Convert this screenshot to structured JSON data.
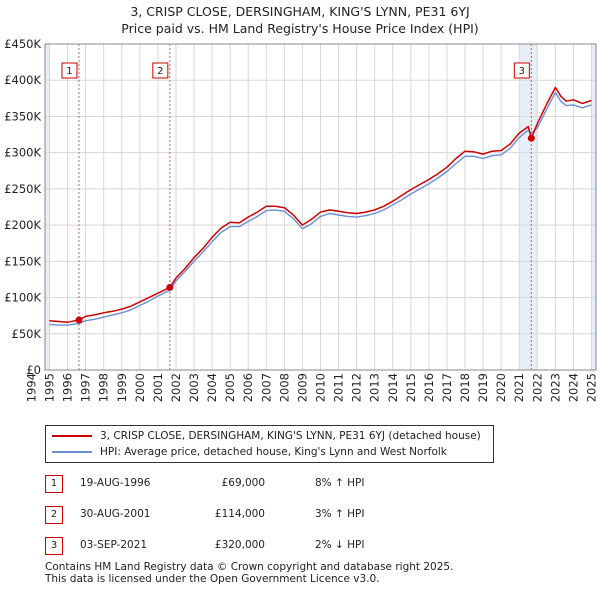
{
  "title_line1": "3, CRISP CLOSE, DERSINGHAM, KING'S LYNN, PE31 6YJ",
  "title_line2": "Price paid vs. HM Land Registry's House Price Index (HPI)",
  "legend": {
    "series1": "3, CRISP CLOSE, DERSINGHAM, KING'S LYNN, PE31 6YJ (detached house)",
    "series2": "HPI: Average price, detached house, King's Lynn and West Norfolk"
  },
  "colors": {
    "property": "#cc0000",
    "hpi": "#6b8fd4",
    "shade": "#e8eef8",
    "marker": "#cc0000"
  },
  "transactions": [
    {
      "num": "1",
      "date": "19-AUG-1996",
      "price": "£69,000",
      "hpi": "8% ↑ HPI"
    },
    {
      "num": "2",
      "date": "30-AUG-2001",
      "price": "£114,000",
      "hpi": "3% ↑ HPI"
    },
    {
      "num": "3",
      "date": "03-SEP-2021",
      "price": "£320,000",
      "hpi": "2% ↓ HPI"
    }
  ],
  "footer_line1": "Contains HM Land Registry data © Crown copyright and database right 2025.",
  "footer_line2": "This data is licensed under the Open Government Licence v3.0.",
  "chart_data": {
    "type": "line",
    "title": "3, CRISP CLOSE, DERSINGHAM, KING'S LYNN, PE31 6YJ — Price paid vs. HM Land Registry's House Price Index (HPI)",
    "xlabel": "",
    "ylabel": "",
    "xlim": [
      1994.75,
      2025.25
    ],
    "ylim": [
      0,
      450000
    ],
    "y_ticks": [
      0,
      50000,
      100000,
      150000,
      200000,
      250000,
      300000,
      350000,
      400000,
      450000
    ],
    "y_tick_labels": [
      "£0",
      "£50K",
      "£100K",
      "£150K",
      "£200K",
      "£250K",
      "£300K",
      "£350K",
      "£400K",
      "£450K"
    ],
    "x_ticks": [
      1994,
      1995,
      1996,
      1997,
      1998,
      1999,
      2000,
      2001,
      2002,
      2003,
      2004,
      2005,
      2006,
      2007,
      2008,
      2009,
      2010,
      2011,
      2012,
      2013,
      2014,
      2015,
      2016,
      2017,
      2018,
      2019,
      2020,
      2021,
      2022,
      2023,
      2024,
      2025
    ],
    "x_tick_labels": [
      "1994",
      "1995",
      "1996",
      "1997",
      "1998",
      "1999",
      "2000",
      "2001",
      "2002",
      "2003",
      "2004",
      "2005",
      "2006",
      "2007",
      "2008",
      "2009",
      "2010",
      "2011",
      "2012",
      "2013",
      "2014",
      "2015",
      "2016",
      "2017",
      "2018",
      "2019",
      "2020",
      "2021",
      "2022",
      "2023",
      "2024",
      "2025"
    ],
    "grid": true,
    "shaded_periods": [
      [
        1994.75,
        1995.0
      ],
      [
        2021.0,
        2022.0
      ],
      [
        2025.0,
        2025.25
      ]
    ],
    "series": [
      {
        "name": "3, CRISP CLOSE, DERSINGHAM, KING'S LYNN, PE31 6YJ (detached house)",
        "x": [
          1995.0,
          1995.5,
          1996.0,
          1996.63,
          1997.0,
          1997.5,
          1998.0,
          1998.5,
          1999.0,
          1999.5,
          2000.0,
          2000.5,
          2001.0,
          2001.66,
          2002.0,
          2002.5,
          2003.0,
          2003.5,
          2004.0,
          2004.5,
          2005.0,
          2005.5,
          2006.0,
          2006.5,
          2007.0,
          2007.5,
          2008.0,
          2008.5,
          2009.0,
          2009.5,
          2010.0,
          2010.5,
          2011.0,
          2011.5,
          2012.0,
          2012.5,
          2013.0,
          2013.5,
          2014.0,
          2014.5,
          2015.0,
          2015.5,
          2016.0,
          2016.5,
          2017.0,
          2017.5,
          2018.0,
          2018.5,
          2019.0,
          2019.5,
          2020.0,
          2020.5,
          2021.0,
          2021.5,
          2021.67,
          2022.0,
          2022.5,
          2023.0,
          2023.3,
          2023.6,
          2024.0,
          2024.5,
          2025.0
        ],
        "values": [
          68000,
          67000,
          66000,
          69000,
          74000,
          76000,
          79000,
          81000,
          84000,
          88000,
          94000,
          100000,
          106000,
          114000,
          127000,
          140000,
          155000,
          168000,
          183000,
          196000,
          204000,
          203000,
          211000,
          218000,
          226000,
          226000,
          224000,
          214000,
          200000,
          208000,
          218000,
          221000,
          219000,
          217000,
          216000,
          218000,
          221000,
          226000,
          233000,
          241000,
          249000,
          256000,
          263000,
          271000,
          280000,
          292000,
          302000,
          301000,
          298000,
          302000,
          303000,
          312000,
          327000,
          336000,
          320000,
          340000,
          366000,
          390000,
          378000,
          371000,
          373000,
          368000,
          372000
        ]
      },
      {
        "name": "HPI: Average price, detached house, King's Lynn and West Norfolk",
        "x": [
          1995.0,
          1995.5,
          1996.0,
          1996.63,
          1997.0,
          1997.5,
          1998.0,
          1998.5,
          1999.0,
          1999.5,
          2000.0,
          2000.5,
          2001.0,
          2001.66,
          2002.0,
          2002.5,
          2003.0,
          2003.5,
          2004.0,
          2004.5,
          2005.0,
          2005.5,
          2006.0,
          2006.5,
          2007.0,
          2007.5,
          2008.0,
          2008.5,
          2009.0,
          2009.5,
          2010.0,
          2010.5,
          2011.0,
          2011.5,
          2012.0,
          2012.5,
          2013.0,
          2013.5,
          2014.0,
          2014.5,
          2015.0,
          2015.5,
          2016.0,
          2016.5,
          2017.0,
          2017.5,
          2018.0,
          2018.5,
          2019.0,
          2019.5,
          2020.0,
          2020.5,
          2021.0,
          2021.5,
          2021.67,
          2022.0,
          2022.5,
          2023.0,
          2023.3,
          2023.6,
          2024.0,
          2024.5,
          2025.0
        ],
        "values": [
          63000,
          62000,
          62000,
          64000,
          68000,
          70000,
          73000,
          76000,
          79000,
          83000,
          89000,
          95000,
          102000,
          110000,
          123000,
          136000,
          150000,
          163000,
          177000,
          190000,
          198000,
          198000,
          205000,
          212000,
          220000,
          221000,
          219000,
          209000,
          195000,
          202000,
          212000,
          216000,
          214000,
          212000,
          211000,
          213000,
          216000,
          221000,
          228000,
          235000,
          243000,
          250000,
          257000,
          265000,
          274000,
          285000,
          295000,
          295000,
          292000,
          296000,
          297000,
          306000,
          321000,
          331000,
          327000,
          334000,
          359000,
          383000,
          371000,
          365000,
          366000,
          362000,
          366000
        ]
      }
    ],
    "annotations": [
      {
        "label": "1",
        "x": 1996.63,
        "y": 69000,
        "price": "£69,000",
        "date": "19-AUG-1996"
      },
      {
        "label": "2",
        "x": 2001.66,
        "y": 114000,
        "price": "£114,000",
        "date": "30-AUG-2001"
      },
      {
        "label": "3",
        "x": 2021.67,
        "y": 320000,
        "price": "£320,000",
        "date": "03-SEP-2021"
      }
    ]
  }
}
